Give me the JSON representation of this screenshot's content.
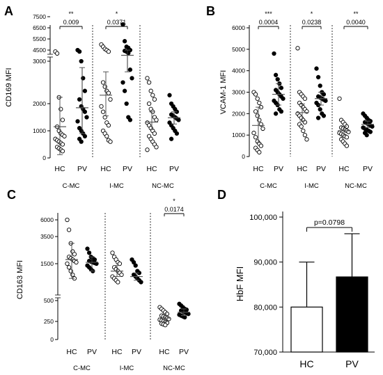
{
  "figure": {
    "panel_letters": [
      "A",
      "B",
      "C",
      "D"
    ]
  },
  "chart_data": [
    {
      "panel": "A",
      "type": "scatter",
      "ylabel": "CD169 MFI",
      "scale": "broken",
      "yticks": [
        0,
        1000,
        2000,
        3000,
        4500,
        5500,
        6500,
        7500
      ],
      "groups": [
        {
          "name": "C-MC",
          "pvalue": "0.009",
          "stars": "**",
          "series": [
            {
              "name": "HC",
              "filled": false,
              "mean": 1150,
              "sd_low": 120,
              "sd_high": 2150,
              "values": [
                4300,
                4050,
                2150,
                1800,
                1400,
                1150,
                1000,
                900,
                850,
                800,
                700,
                650,
                600,
                550,
                500,
                400,
                350,
                300,
                250
              ]
            },
            {
              "name": "PV",
              "filled": true,
              "mean": 1850,
              "sd_low": 900,
              "sd_high": 2850,
              "values": [
                4500,
                4300,
                3000,
                2600,
                2300,
                2100,
                1900,
                1800,
                1700,
                1500,
                1350,
                1100,
                1000,
                900,
                800,
                700,
                600
              ]
            }
          ]
        },
        {
          "name": "I-MC",
          "pvalue": "0.0371",
          "stars": "*",
          "series": [
            {
              "name": "HC",
              "filled": false,
              "mean": 2200,
              "sd_low": 1550,
              "sd_high": 2750,
              "values": [
                5000,
                4800,
                4600,
                4500,
                4300,
                2500,
                2400,
                2300,
                2250,
                2100,
                1900,
                1700,
                1500,
                1300,
                1200,
                1000,
                900,
                800,
                650,
                600
              ]
            },
            {
              "name": "PV",
              "filled": true,
              "mean": 3800,
              "sd_low": 2750,
              "sd_high": 4500,
              "values": [
                6800,
                5300,
                4800,
                4700,
                4500,
                4400,
                4300,
                4100,
                2800,
                2600,
                2500,
                2300,
                2000,
                1500,
                1400
              ]
            }
          ]
        },
        {
          "name": "NC-MC",
          "pvalue": "",
          "stars": "",
          "series": [
            {
              "name": "HC",
              "filled": false,
              "mean": 1320,
              "sd_low": 1050,
              "sd_high": 1700,
              "values": [
                2600,
                2500,
                2300,
                2200,
                2100,
                2000,
                1800,
                1700,
                1500,
                1400,
                1300,
                1200,
                1100,
                1000,
                900,
                800,
                700,
                600,
                500,
                400,
                300
              ]
            },
            {
              "name": "PV",
              "filled": true,
              "mean": 1480,
              "sd_low": 1250,
              "sd_high": 1700,
              "values": [
                2200,
                2000,
                1900,
                1800,
                1700,
                1600,
                1550,
                1500,
                1450,
                1400,
                1300,
                1200,
                1100,
                1000,
                900,
                700
              ]
            }
          ]
        }
      ]
    },
    {
      "panel": "B",
      "type": "scatter",
      "ylabel": "VCAM-1 MFI",
      "ylim": [
        0,
        6000
      ],
      "yticks": [
        0,
        1000,
        2000,
        3000,
        4000,
        5000,
        6000
      ],
      "groups": [
        {
          "name": "C-MC",
          "pvalue": "0.0004",
          "stars": "***",
          "series": [
            {
              "name": "HC",
              "filled": false,
              "mean": 1450,
              "sd_low": 650,
              "sd_high": 2300,
              "values": [
                3000,
                2900,
                2700,
                2500,
                2300,
                2100,
                1900,
                1700,
                1500,
                1300,
                1100,
                900,
                700,
                600,
                500,
                400,
                300,
                200
              ]
            },
            {
              "name": "PV",
              "filled": true,
              "mean": 2900,
              "sd_low": 2400,
              "sd_high": 3400,
              "values": [
                4800,
                3800,
                3600,
                3400,
                3200,
                3100,
                3000,
                2900,
                2800,
                2700,
                2600,
                2500,
                2400,
                2200,
                2100,
                2000
              ]
            }
          ]
        },
        {
          "name": "I-MC",
          "pvalue": "0.0238",
          "stars": "*",
          "series": [
            {
              "name": "HC",
              "filled": false,
              "mean": 2050,
              "sd_low": 1650,
              "sd_high": 2450,
              "values": [
                5050,
                3000,
                2900,
                2800,
                2700,
                2500,
                2400,
                2300,
                2200,
                2100,
                2000,
                1900,
                1800,
                1700,
                1600,
                1500,
                1400,
                1200,
                1000,
                800
              ]
            },
            {
              "name": "PV",
              "filled": true,
              "mean": 2700,
              "sd_low": 2400,
              "sd_high": 3000,
              "values": [
                4100,
                3700,
                3300,
                3000,
                2900,
                2800,
                2750,
                2700,
                2650,
                2600,
                2500,
                2400,
                2200,
                2000,
                1900,
                1800
              ]
            }
          ]
        },
        {
          "name": "NC-MC",
          "pvalue": "0.0040",
          "stars": "**",
          "series": [
            {
              "name": "HC",
              "filled": false,
              "mean": 1200,
              "sd_low": 1000,
              "sd_high": 1400,
              "values": [
                2700,
                1700,
                1600,
                1500,
                1400,
                1350,
                1300,
                1250,
                1200,
                1150,
                1100,
                1050,
                1000,
                950,
                900,
                800,
                700,
                600,
                500
              ]
            },
            {
              "name": "PV",
              "filled": true,
              "mean": 1500,
              "sd_low": 1350,
              "sd_high": 1650,
              "values": [
                2000,
                1900,
                1800,
                1700,
                1650,
                1600,
                1550,
                1500,
                1450,
                1400,
                1350,
                1300,
                1250,
                1200,
                1150,
                1100,
                1000
              ]
            }
          ]
        }
      ]
    },
    {
      "panel": "C",
      "type": "scatter",
      "ylabel": "CD163 MFI",
      "scale": "broken",
      "yticks": [
        0,
        250,
        500,
        1500,
        3500,
        6000
      ],
      "groups": [
        {
          "name": "C-MC",
          "pvalue": "",
          "stars": "",
          "series": [
            {
              "name": "HC",
              "filled": false,
              "mean": 1800,
              "sd_low": 1100,
              "sd_high": 3000,
              "values": [
                6200,
                4500,
                3000,
                2400,
                2200,
                2000,
                1900,
                1800,
                1700,
                1600,
                1500,
                1400,
                1300,
                1200,
                1100
              ]
            },
            {
              "name": "PV",
              "filled": true,
              "mean": 1600,
              "sd_low": 1300,
              "sd_high": 2000,
              "values": [
                2600,
                2300,
                2000,
                1900,
                1800,
                1700,
                1650,
                1600,
                1550,
                1500,
                1450,
                1400,
                1350,
                1300
              ]
            }
          ]
        },
        {
          "name": "I-MC",
          "pvalue": "",
          "stars": "",
          "series": [
            {
              "name": "HC",
              "filled": false,
              "mean": 1300,
              "sd_low": 1150,
              "sd_high": 1450,
              "values": [
                2300,
                2000,
                1800,
                1600,
                1500,
                1400,
                1350,
                1300,
                1250,
                1200,
                1150,
                1100,
                1050,
                1000
              ]
            },
            {
              "name": "PV",
              "filled": true,
              "mean": 1150,
              "sd_low": 1050,
              "sd_high": 1250,
              "values": [
                1800,
                1600,
                1450,
                1300,
                1250,
                1200,
                1150,
                1100,
                1050,
                1000
              ]
            }
          ]
        },
        {
          "name": "NC-MC",
          "pvalue": "0.0174",
          "stars": "*",
          "series": [
            {
              "name": "HC",
              "filled": false,
              "mean": 290,
              "sd_low": 240,
              "sd_high": 340,
              "values": [
                420,
                400,
                380,
                360,
                340,
                320,
                310,
                300,
                290,
                280,
                270,
                260,
                250,
                240,
                230,
                220,
                210,
                200
              ]
            },
            {
              "name": "PV",
              "filled": true,
              "mean": 360,
              "sd_low": 320,
              "sd_high": 400,
              "values": [
                460,
                440,
                420,
                400,
                390,
                380,
                370,
                360,
                350,
                340,
                330,
                320,
                310,
                300
              ]
            }
          ]
        }
      ]
    },
    {
      "panel": "D",
      "type": "bar",
      "ylabel": "HbF MFI",
      "categories": [
        "HC",
        "PV"
      ],
      "values": [
        80000,
        86700
      ],
      "errors_upper": [
        90000,
        96300
      ],
      "ylim": [
        70000,
        100000
      ],
      "yticks": [
        "70,000",
        "80,000",
        "90,000",
        "100,000"
      ],
      "bar_colors": [
        "#ffffff",
        "#000000"
      ],
      "annotation": "p=0.0798"
    }
  ]
}
